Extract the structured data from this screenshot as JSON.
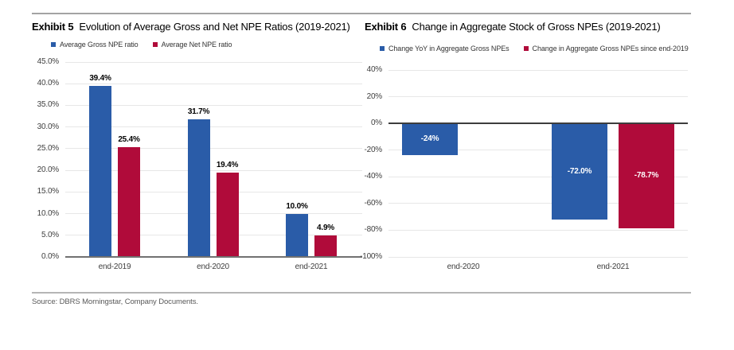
{
  "source_note": "Source: DBRS Morningstar, Company Documents.",
  "colors": {
    "series_blue": "#2A5CA8",
    "series_red": "#B00B3A",
    "gridline": "#e7e7e7"
  },
  "chart_data": [
    {
      "id": "exhibit5",
      "type": "bar",
      "exhibit_label": "Exhibit 5",
      "title": "Evolution of Average Gross and Net NPE Ratios (2019-2021)",
      "categories": [
        "end-2019",
        "end-2020",
        "end-2021"
      ],
      "series": [
        {
          "name": "Average Gross NPE ratio",
          "color": "#2A5CA8",
          "values": [
            39.4,
            31.7,
            10.0
          ],
          "value_labels": [
            "39.4%",
            "31.7%",
            "10.0%"
          ]
        },
        {
          "name": "Average Net NPE ratio",
          "color": "#B00B3A",
          "values": [
            25.4,
            19.4,
            4.9
          ],
          "value_labels": [
            "25.4%",
            "19.4%",
            "4.9%"
          ]
        }
      ],
      "ylim": [
        0,
        45
      ],
      "ytick_values": [
        45,
        40,
        35,
        30,
        25,
        20,
        15,
        10,
        5,
        0
      ],
      "ytick_labels": [
        "45.0%",
        "40.0%",
        "35.0%",
        "30.0%",
        "25.0%",
        "20.0%",
        "15.0%",
        "10.0%",
        "5.0%",
        "0.0%"
      ],
      "value_label_position": "above",
      "grid": true,
      "legend_position": "top-left"
    },
    {
      "id": "exhibit6",
      "type": "bar",
      "exhibit_label": "Exhibit 6",
      "title": "Change in Aggregate Stock of Gross NPEs (2019-2021)",
      "categories": [
        "end-2020",
        "end-2021"
      ],
      "series": [
        {
          "name": "Change YoY in Aggregate Gross NPEs",
          "color": "#2A5CA8",
          "values": [
            -24,
            -72.0
          ],
          "value_labels": [
            "-24%",
            "-72.0%"
          ]
        },
        {
          "name": "Change in Aggregate Gross NPEs since end-2019",
          "color": "#B00B3A",
          "values": [
            null,
            -78.7
          ],
          "value_labels": [
            null,
            "-78.7%"
          ]
        }
      ],
      "ylim": [
        -100,
        40
      ],
      "ytick_values": [
        40,
        20,
        0,
        -20,
        -40,
        -60,
        -80,
        -100
      ],
      "ytick_labels": [
        "40%",
        "20%",
        "0%",
        "-20%",
        "-40%",
        "-60%",
        "-80%",
        "-100%"
      ],
      "value_label_position": "inside",
      "grid": true,
      "legend_position": "top-left"
    }
  ]
}
